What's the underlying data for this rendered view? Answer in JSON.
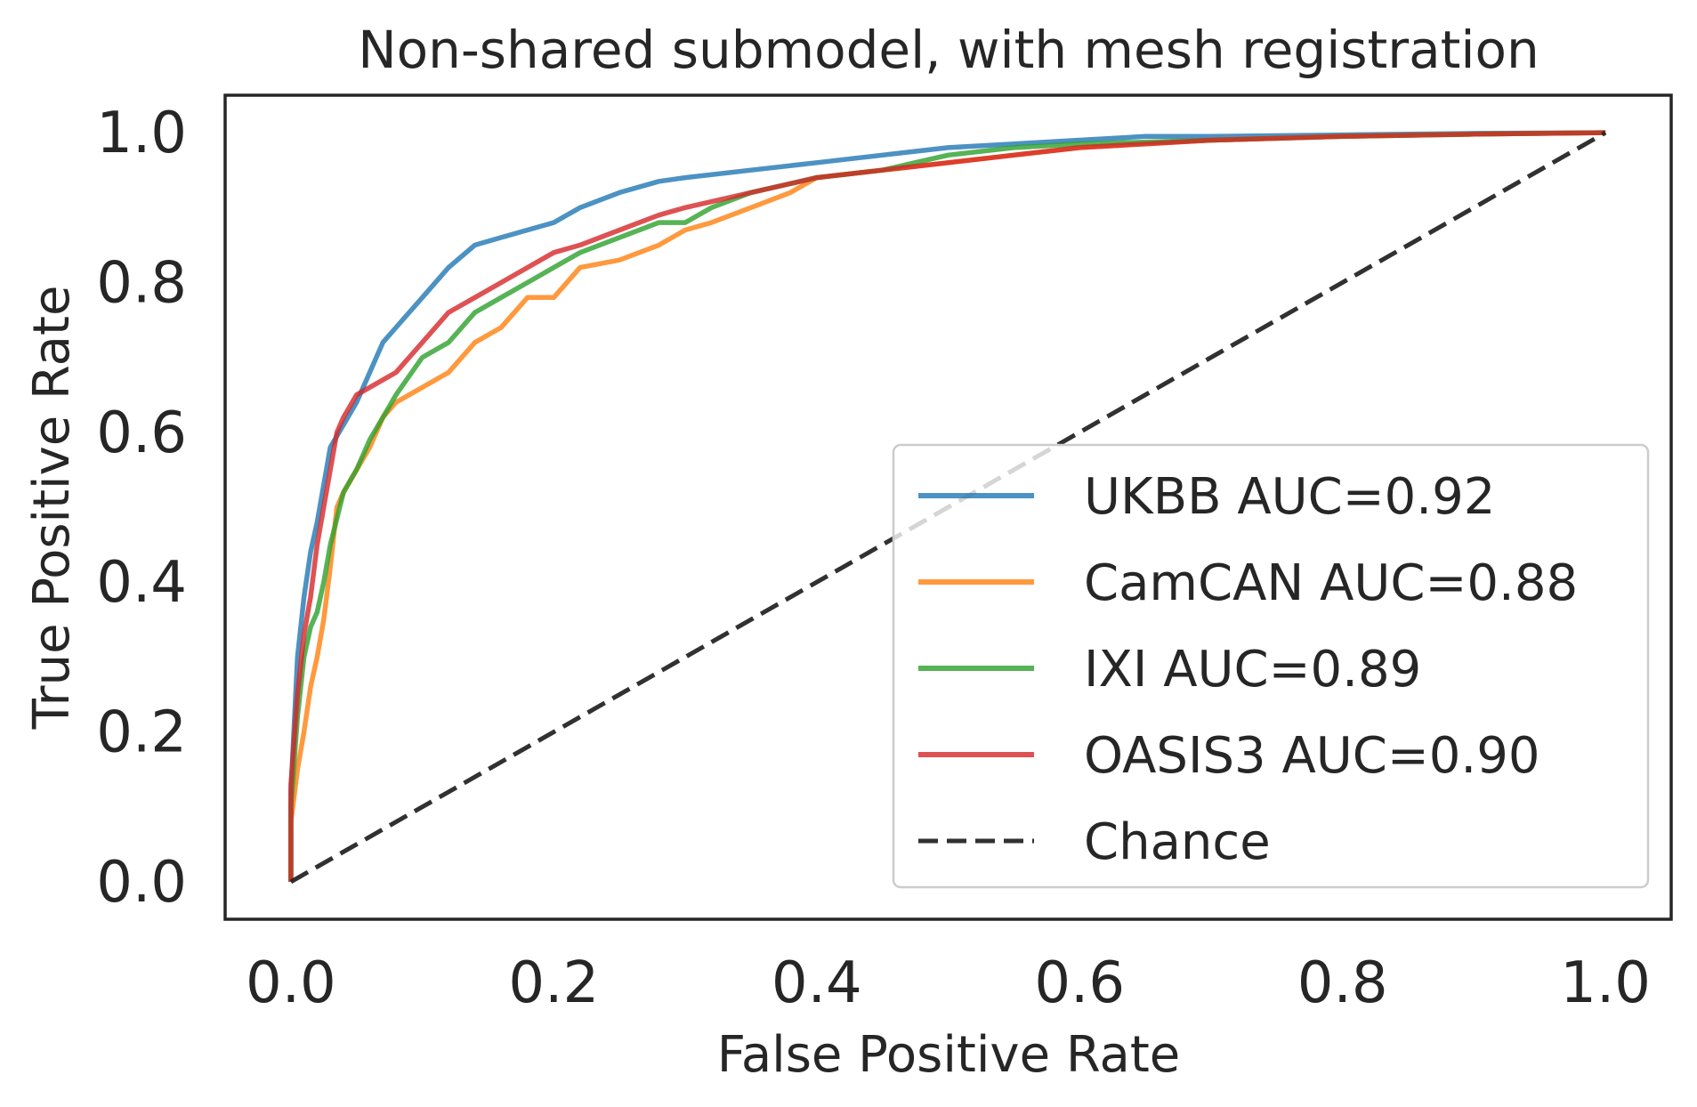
{
  "chart_data": {
    "type": "line",
    "title": "Non-shared submodel, with mesh registration",
    "xlabel": "False Positive Rate",
    "ylabel": "True Positive Rate",
    "xlim": [
      -0.05,
      1.05
    ],
    "ylim": [
      -0.05,
      1.05
    ],
    "xticks": [
      0.0,
      0.2,
      0.4,
      0.6,
      0.8,
      1.0
    ],
    "xtick_labels": [
      "0.0",
      "0.2",
      "0.4",
      "0.6",
      "0.8",
      "1.0"
    ],
    "yticks": [
      0.0,
      0.2,
      0.4,
      0.6,
      0.8,
      1.0
    ],
    "ytick_labels": [
      "0.0",
      "0.2",
      "0.4",
      "0.6",
      "0.8",
      "1.0"
    ],
    "grid": false,
    "legend_position": "lower-right",
    "series": [
      {
        "name": "UKBB AUC=0.92",
        "color": "#1f77b4",
        "style": "solid",
        "x": [
          0.0,
          0.0,
          0.005,
          0.01,
          0.015,
          0.02,
          0.025,
          0.03,
          0.04,
          0.05,
          0.06,
          0.07,
          0.08,
          0.1,
          0.12,
          0.14,
          0.16,
          0.18,
          0.2,
          0.22,
          0.25,
          0.28,
          0.3,
          0.35,
          0.4,
          0.45,
          0.5,
          0.55,
          0.6,
          0.65,
          0.7,
          0.8,
          0.9,
          1.0
        ],
        "y": [
          0.0,
          0.12,
          0.3,
          0.38,
          0.44,
          0.48,
          0.53,
          0.58,
          0.61,
          0.64,
          0.68,
          0.72,
          0.74,
          0.78,
          0.82,
          0.85,
          0.86,
          0.87,
          0.88,
          0.9,
          0.92,
          0.935,
          0.94,
          0.95,
          0.96,
          0.97,
          0.98,
          0.985,
          0.99,
          0.995,
          0.995,
          0.997,
          0.999,
          1.0
        ]
      },
      {
        "name": "CamCAN AUC=0.88",
        "color": "#ff7f0e",
        "style": "solid",
        "x": [
          0.0,
          0.0,
          0.005,
          0.01,
          0.015,
          0.02,
          0.025,
          0.03,
          0.035,
          0.04,
          0.05,
          0.06,
          0.07,
          0.08,
          0.1,
          0.12,
          0.14,
          0.16,
          0.18,
          0.2,
          0.22,
          0.25,
          0.28,
          0.3,
          0.32,
          0.35,
          0.38,
          0.4,
          0.45,
          0.5,
          0.55,
          0.6,
          0.7,
          0.8,
          0.9,
          1.0
        ],
        "y": [
          0.0,
          0.08,
          0.15,
          0.2,
          0.26,
          0.3,
          0.35,
          0.42,
          0.5,
          0.52,
          0.55,
          0.58,
          0.62,
          0.64,
          0.66,
          0.68,
          0.72,
          0.74,
          0.78,
          0.78,
          0.82,
          0.83,
          0.85,
          0.87,
          0.88,
          0.9,
          0.92,
          0.94,
          0.95,
          0.96,
          0.97,
          0.98,
          0.99,
          0.995,
          0.998,
          1.0
        ]
      },
      {
        "name": "IXI AUC=0.89",
        "color": "#2ca02c",
        "style": "solid",
        "x": [
          0.0,
          0.0,
          0.005,
          0.01,
          0.015,
          0.02,
          0.025,
          0.03,
          0.04,
          0.05,
          0.06,
          0.07,
          0.08,
          0.1,
          0.12,
          0.14,
          0.16,
          0.18,
          0.2,
          0.22,
          0.25,
          0.28,
          0.3,
          0.32,
          0.35,
          0.4,
          0.45,
          0.5,
          0.55,
          0.6,
          0.7,
          0.8,
          0.9,
          1.0
        ],
        "y": [
          0.0,
          0.1,
          0.22,
          0.3,
          0.34,
          0.36,
          0.4,
          0.45,
          0.52,
          0.55,
          0.59,
          0.62,
          0.65,
          0.7,
          0.72,
          0.76,
          0.78,
          0.8,
          0.82,
          0.84,
          0.86,
          0.88,
          0.88,
          0.9,
          0.92,
          0.94,
          0.95,
          0.97,
          0.98,
          0.985,
          0.99,
          0.995,
          0.998,
          1.0
        ]
      },
      {
        "name": "OASIS3 AUC=0.90",
        "color": "#d62728",
        "style": "solid",
        "x": [
          0.0,
          0.0,
          0.005,
          0.01,
          0.015,
          0.02,
          0.025,
          0.03,
          0.035,
          0.04,
          0.05,
          0.06,
          0.08,
          0.1,
          0.12,
          0.14,
          0.16,
          0.18,
          0.2,
          0.22,
          0.25,
          0.28,
          0.3,
          0.35,
          0.4,
          0.45,
          0.5,
          0.55,
          0.6,
          0.65,
          0.7,
          0.8,
          0.9,
          1.0
        ],
        "y": [
          0.0,
          0.13,
          0.25,
          0.33,
          0.38,
          0.45,
          0.5,
          0.55,
          0.6,
          0.62,
          0.65,
          0.66,
          0.68,
          0.72,
          0.76,
          0.78,
          0.8,
          0.82,
          0.84,
          0.85,
          0.87,
          0.89,
          0.9,
          0.92,
          0.94,
          0.95,
          0.96,
          0.97,
          0.98,
          0.985,
          0.99,
          0.995,
          0.998,
          1.0
        ]
      },
      {
        "name": "Chance",
        "color": "#262626",
        "style": "dashed",
        "x": [
          0.0,
          1.0
        ],
        "y": [
          0.0,
          1.0
        ]
      }
    ]
  }
}
